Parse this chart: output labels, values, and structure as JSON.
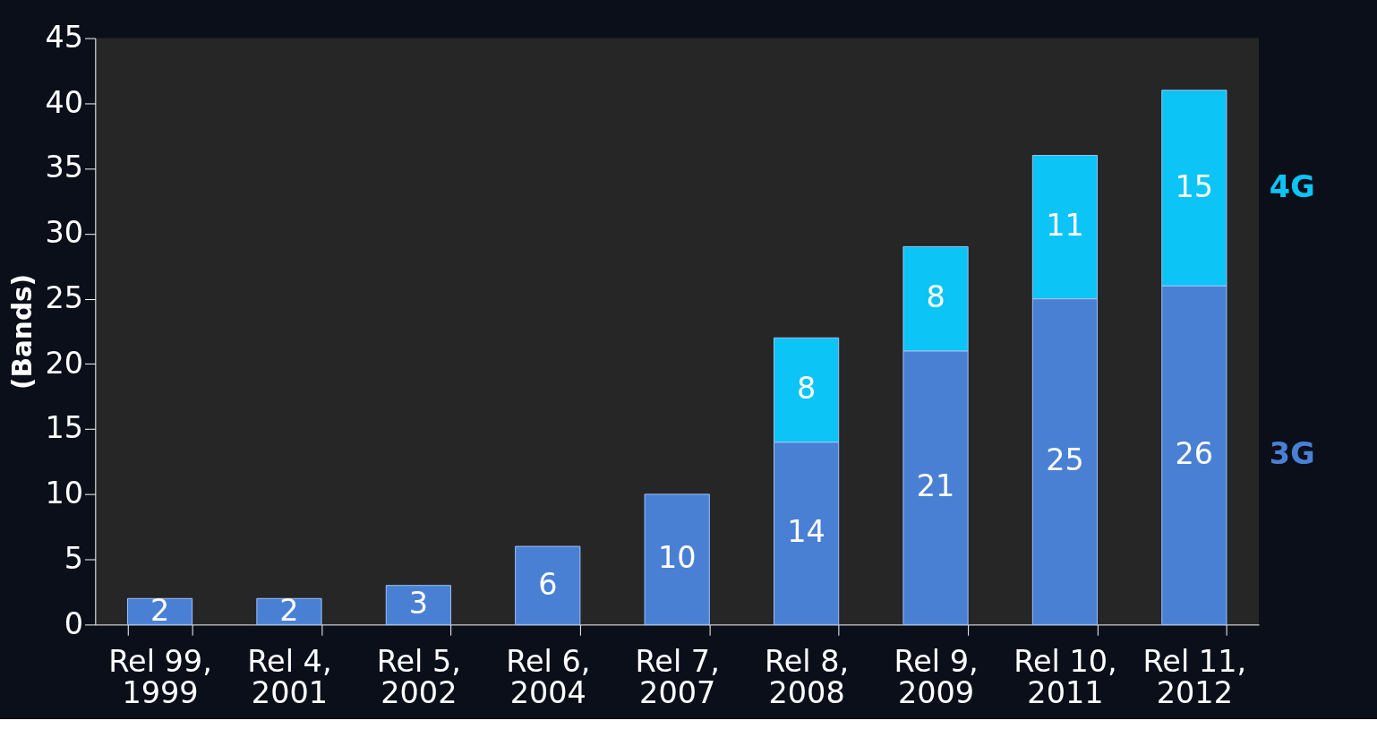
{
  "chart_data": {
    "type": "bar",
    "stacked": true,
    "ylabel": "(Bands)",
    "categories": [
      "Rel 99, 1999",
      "Rel 4, 2001",
      "Rel 5, 2002",
      "Rel 6, 2004",
      "Rel 7, 2007",
      "Rel 8, 2008",
      "Rel 9, 2009",
      "Rel 10, 2011",
      "Rel 11, 2012"
    ],
    "series": [
      {
        "name": "3G",
        "color": "#4a80d4",
        "values": [
          2,
          2,
          3,
          6,
          10,
          14,
          21,
          25,
          26
        ]
      },
      {
        "name": "4G",
        "color": "#0cc4f5",
        "values": [
          null,
          null,
          null,
          null,
          null,
          8,
          8,
          11,
          15
        ]
      }
    ],
    "ylim": [
      0,
      45
    ],
    "yticks": [
      0,
      5,
      10,
      15,
      20,
      25,
      30,
      35,
      40,
      45
    ],
    "data_labels": true,
    "grid": false,
    "legend": "right"
  }
}
